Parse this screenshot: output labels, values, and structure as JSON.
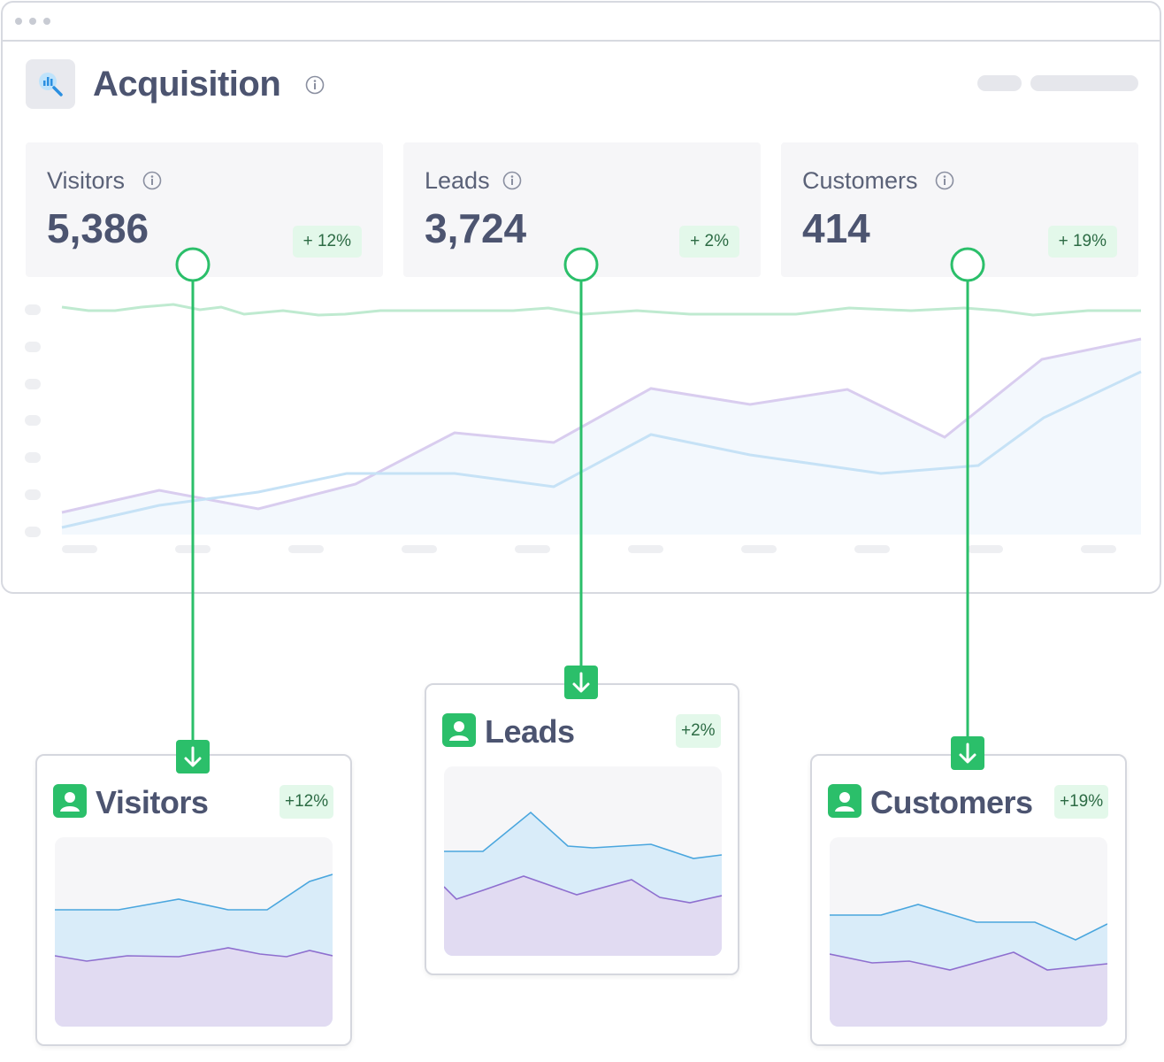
{
  "header": {
    "title": "Acquisition"
  },
  "stats": [
    {
      "label": "Visitors",
      "value": "5,386",
      "change": "+ 12%"
    },
    {
      "label": "Leads",
      "value": "3,724",
      "change": "+ 2%"
    },
    {
      "label": "Customers",
      "value": "414",
      "change": "+ 19%"
    }
  ],
  "mini_cards": [
    {
      "title": "Visitors",
      "change": "+12%"
    },
    {
      "title": "Leads",
      "change": "+2%"
    },
    {
      "title": "Customers",
      "change": "+19%"
    }
  ],
  "icons": {
    "header": "search-chart-icon",
    "info": "info-icon",
    "card": "user-icon",
    "connector": "arrow-down-icon"
  },
  "colors": {
    "accent_green": "#2bbf6a",
    "badge_bg": "#e3f8ea",
    "series_green": "#bfead0",
    "series_purple": "#d9cdef",
    "series_blue": "#c6e2f6"
  }
}
